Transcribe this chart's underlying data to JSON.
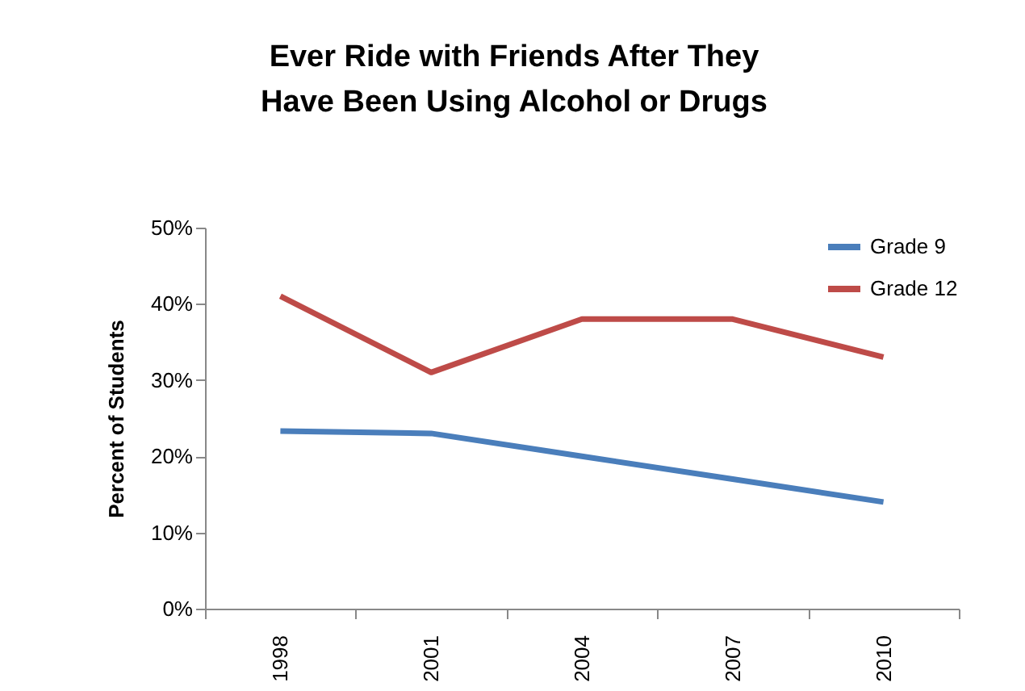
{
  "chart_data": {
    "type": "line",
    "title": "Ever Ride with Friends After They\nHave Been Using Alcohol or Drugs",
    "ylabel": "Percent of Students",
    "categories": [
      "1998",
      "2001",
      "2004",
      "2007",
      "2010"
    ],
    "series": [
      {
        "name": "Grade 9",
        "color": "#4a7ebb",
        "values": [
          23.3,
          23,
          20,
          17,
          14
        ]
      },
      {
        "name": "Grade 12",
        "color": "#be4b48",
        "values": [
          41,
          31,
          38,
          38,
          33
        ]
      }
    ],
    "ylim": [
      0,
      50
    ],
    "yticks": [
      {
        "value": 0,
        "label": "0%"
      },
      {
        "value": 10,
        "label": "10%"
      },
      {
        "value": 20,
        "label": "20%"
      },
      {
        "value": 30,
        "label": "30%"
      },
      {
        "value": 40,
        "label": "40%"
      },
      {
        "value": 50,
        "label": "50%"
      }
    ],
    "grid": false,
    "legend": "top right",
    "marker": "none",
    "line_style": "solid"
  }
}
